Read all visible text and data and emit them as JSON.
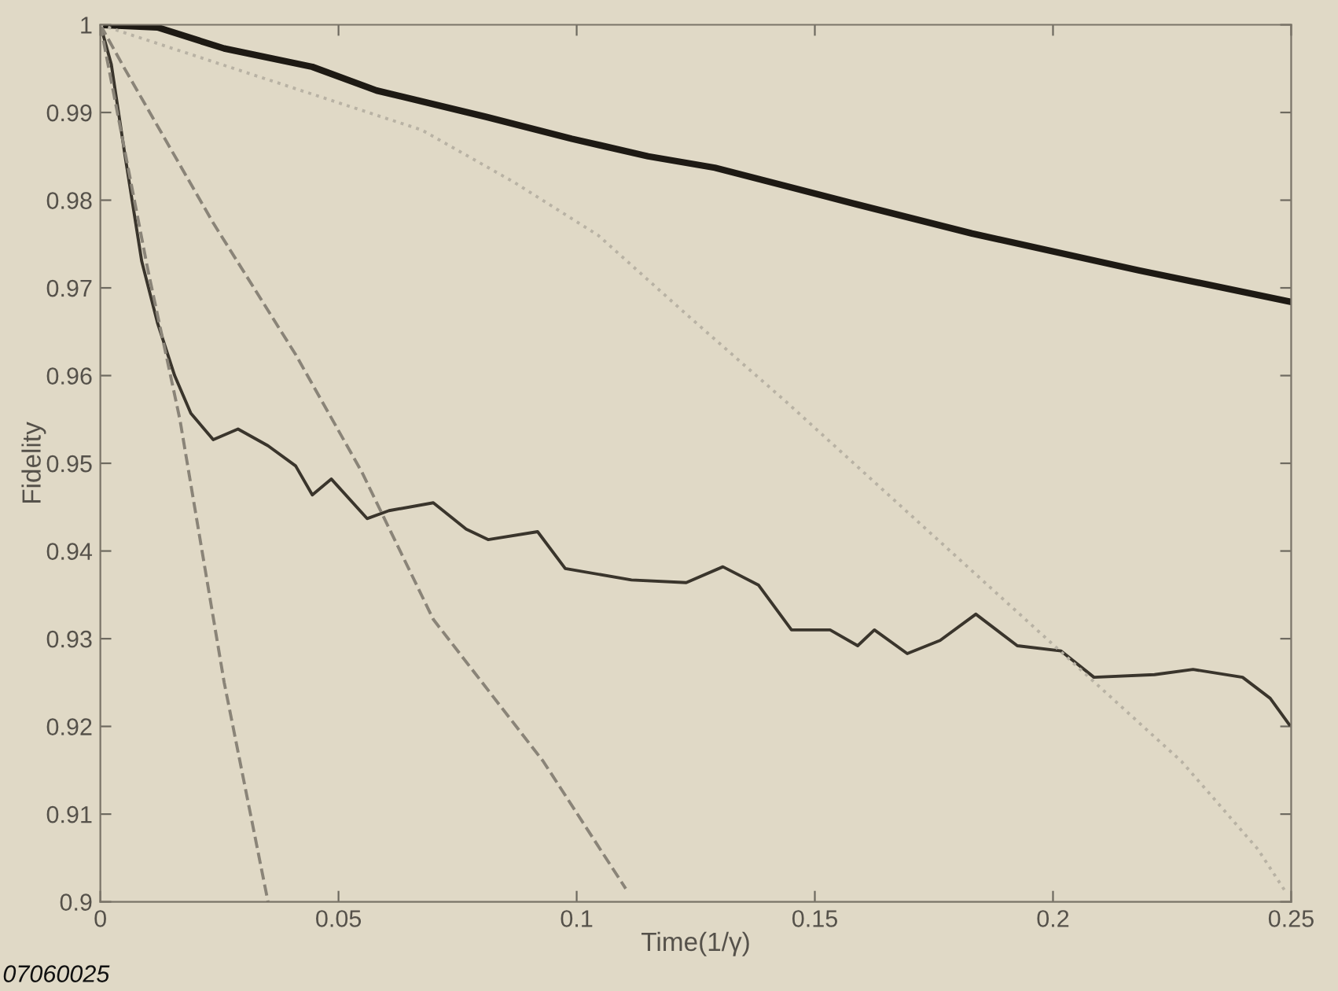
{
  "chart_data": {
    "type": "line",
    "xlabel": "Time(1/γ)",
    "ylabel": "Fidelity",
    "xlim": [
      0,
      0.25
    ],
    "ylim": [
      0.9,
      1
    ],
    "xticks": [
      0,
      0.05,
      0.1,
      0.15,
      0.2,
      0.25
    ],
    "yticks": [
      0.9,
      0.91,
      0.92,
      0.93,
      0.94,
      0.95,
      0.96,
      0.97,
      0.98,
      0.99,
      1
    ],
    "grid": false,
    "legend": false,
    "marker": "none",
    "annotations": [
      "07060025"
    ],
    "series": [
      {
        "color": "#1e1a14",
        "line_style": "solid",
        "x": [
          0,
          0.012,
          0.026,
          0.0445,
          0.058,
          0.081,
          0.099,
          0.115,
          0.129,
          0.159,
          0.183,
          0.218,
          0.25
        ],
        "values": [
          1,
          0.9997,
          0.9973,
          0.9952,
          0.9925,
          0.9895,
          0.987,
          0.985,
          0.9837,
          0.9795,
          0.9762,
          0.972,
          0.9684
        ]
      },
      {
        "color": "#3a352c",
        "line_style": "solid",
        "x": [
          0,
          0.0023,
          0.0052,
          0.0087,
          0.012,
          0.0156,
          0.019,
          0.0237,
          0.0289,
          0.0352,
          0.041,
          0.0445,
          0.0485,
          0.056,
          0.0606,
          0.0699,
          0.0768,
          0.0814,
          0.0918,
          0.0976,
          0.1115,
          0.123,
          0.1307,
          0.1382,
          0.1451,
          0.1532,
          0.159,
          0.1625,
          0.1694,
          0.1763,
          0.1838,
          0.1925,
          0.2017,
          0.2086,
          0.2213,
          0.2294,
          0.2398,
          0.2456,
          0.2496
        ],
        "values": [
          1,
          0.9955,
          0.985,
          0.973,
          0.966,
          0.96,
          0.9557,
          0.9527,
          0.9539,
          0.952,
          0.9497,
          0.9464,
          0.9482,
          0.9437,
          0.9446,
          0.9455,
          0.9425,
          0.9413,
          0.9422,
          0.938,
          0.9367,
          0.9364,
          0.9382,
          0.9361,
          0.931,
          0.931,
          0.9292,
          0.931,
          0.9283,
          0.9298,
          0.9328,
          0.9292,
          0.9286,
          0.9256,
          0.9259,
          0.9265,
          0.9256,
          0.9232,
          0.9202
        ]
      },
      {
        "color": "#8a8478",
        "line_style": "dashed",
        "x": [
          0,
          0.01,
          0.0167,
          0.026,
          0.0352
        ],
        "values": [
          1,
          0.972,
          0.955,
          0.925,
          0.9
        ]
      },
      {
        "color": "#8a8478",
        "line_style": "dashed",
        "x": [
          0,
          0.0052,
          0.0237,
          0.041,
          0.0549,
          0.0699,
          0.093,
          0.1103
        ],
        "values": [
          1,
          0.9949,
          0.9774,
          0.9624,
          0.949,
          0.9322,
          0.916,
          0.9015
        ]
      },
      {
        "color": "#b8b2a4",
        "line_style": "dotted",
        "x": [
          0,
          0.0675,
          0.087,
          0.1045,
          0.123,
          0.144,
          0.227,
          0.243,
          0.249
        ],
        "values": [
          1,
          0.988,
          0.982,
          0.976,
          0.967,
          0.957,
          0.916,
          0.906,
          0.901
        ]
      }
    ]
  }
}
